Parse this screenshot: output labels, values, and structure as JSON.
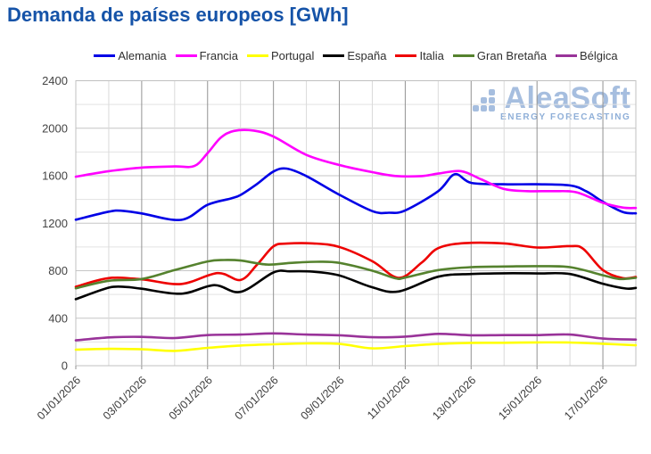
{
  "title": "Demanda de países europeos [GWh]",
  "watermark": {
    "brand": "AleaSoft",
    "tagline": "ENERGY FORECASTING"
  },
  "colors": {
    "title": "#1553a8",
    "watermark_brand": "#a6bedf",
    "watermark_tagline": "#8fafd8",
    "axis_text": "#444444",
    "plot_border": "#c0c0c0",
    "grid_major_h": "#c6c6c6",
    "grid_minor_h": "#e3e3e3",
    "grid_major_v": "#929292",
    "grid_minor_v": "#dadada"
  },
  "chart_data": {
    "type": "line",
    "title": "Demanda de países europeos [GWh]",
    "xlabel": "",
    "ylabel": "",
    "unit": "GWh",
    "grid": true,
    "legend_position": "top",
    "xlim": [
      1,
      18
    ],
    "ylim": [
      0,
      2400
    ],
    "y_tick_step": 400,
    "y_grid_step": 200,
    "y_tick_labels": [
      "0",
      "400",
      "800",
      "1200",
      "1600",
      "2000",
      "2400"
    ],
    "x_tick_days": [
      1,
      3,
      5,
      7,
      9,
      11,
      13,
      15,
      17
    ],
    "x_tick_labels": [
      "01/01/2026",
      "03/01/2026",
      "05/01/2026",
      "07/01/2026",
      "09/01/2026",
      "11/01/2026",
      "13/01/2026",
      "15/01/2026",
      "17/01/2026"
    ],
    "x_axis_note": "x values are days of January 2026 (fractional = intra-day position)",
    "series": [
      {
        "id": "alemania",
        "name": "Alemania",
        "color": "#0000e6",
        "x": [
          1,
          2,
          2.4,
          3,
          4.2,
          5,
          5.7,
          6,
          6.5,
          7,
          7.4,
          8,
          9,
          10,
          10.5,
          11,
          12,
          12.5,
          13,
          14,
          15,
          16,
          16.5,
          17,
          17.6,
          18
        ],
        "y": [
          1230,
          1297,
          1305,
          1282,
          1228,
          1355,
          1408,
          1438,
          1530,
          1635,
          1660,
          1597,
          1440,
          1302,
          1288,
          1308,
          1470,
          1612,
          1540,
          1528,
          1528,
          1518,
          1468,
          1380,
          1295,
          1283
        ]
      },
      {
        "id": "francia",
        "name": "Francia",
        "color": "#ff00ff",
        "x": [
          1,
          2,
          3,
          4,
          4.6,
          5,
          5.4,
          5.8,
          6.4,
          7,
          8,
          9,
          10,
          10.7,
          11.5,
          12,
          12.7,
          13.3,
          14,
          14.7,
          15.5,
          16.2,
          17,
          17.6,
          18
        ],
        "y": [
          1592,
          1638,
          1668,
          1678,
          1682,
          1790,
          1920,
          1977,
          1980,
          1930,
          1775,
          1690,
          1630,
          1598,
          1597,
          1618,
          1638,
          1570,
          1488,
          1470,
          1470,
          1460,
          1372,
          1332,
          1328
        ]
      },
      {
        "id": "portugal",
        "name": "Portugal",
        "color": "#ffff00",
        "x": [
          1,
          2,
          3,
          4,
          5,
          6,
          7,
          8,
          9,
          10,
          11,
          12,
          13,
          14,
          15,
          16,
          17,
          18
        ],
        "y": [
          135,
          142,
          138,
          125,
          150,
          170,
          180,
          188,
          184,
          146,
          165,
          183,
          192,
          193,
          196,
          195,
          185,
          172
        ]
      },
      {
        "id": "espana",
        "name": "España",
        "color": "#000000",
        "x": [
          1,
          2,
          2.5,
          3,
          4.2,
          5.2,
          6,
          7,
          7.5,
          8.2,
          9,
          10,
          10.8,
          12,
          13,
          14,
          15,
          16,
          17,
          17.7,
          18
        ],
        "y": [
          560,
          657,
          663,
          648,
          606,
          678,
          622,
          785,
          795,
          792,
          760,
          660,
          625,
          750,
          772,
          778,
          777,
          772,
          690,
          650,
          655
        ]
      },
      {
        "id": "italia",
        "name": "Italia",
        "color": "#ee0000",
        "x": [
          1,
          2,
          3,
          4.2,
          5.3,
          6,
          6.5,
          7,
          7.4,
          8.2,
          9,
          10,
          10.8,
          11.5,
          12,
          12.8,
          14,
          15,
          16,
          16.4,
          17,
          17.6,
          18
        ],
        "y": [
          665,
          738,
          727,
          688,
          780,
          722,
          850,
          1005,
          1028,
          1030,
          1000,
          880,
          740,
          868,
          990,
          1032,
          1030,
          995,
          1007,
          985,
          805,
          738,
          747
        ]
      },
      {
        "id": "gran-bretana",
        "name": "Gran Bretaña",
        "color": "#55822e",
        "x": [
          1,
          2,
          3,
          4,
          5,
          5.5,
          6,
          6.8,
          7.5,
          8.3,
          9,
          10,
          10.7,
          11,
          12,
          13,
          14,
          15,
          16,
          17,
          17.5,
          18
        ],
        "y": [
          652,
          715,
          730,
          805,
          878,
          890,
          886,
          852,
          865,
          875,
          866,
          800,
          736,
          742,
          805,
          830,
          835,
          838,
          830,
          762,
          730,
          741
        ]
      },
      {
        "id": "belgica",
        "name": "Bélgica",
        "color": "#993399",
        "x": [
          1,
          2,
          3,
          4,
          5,
          6,
          7,
          8,
          9,
          10,
          11,
          12,
          13,
          14,
          15,
          16,
          17,
          18
        ],
        "y": [
          213,
          238,
          243,
          233,
          258,
          262,
          272,
          262,
          256,
          240,
          245,
          268,
          256,
          258,
          258,
          262,
          228,
          220
        ]
      }
    ]
  }
}
